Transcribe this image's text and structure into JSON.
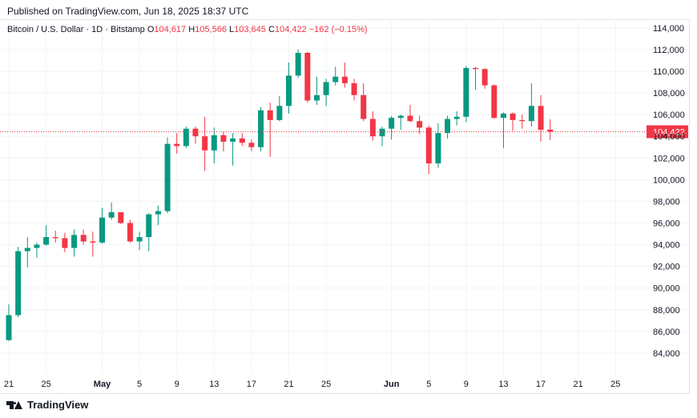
{
  "published": "Published on TradingView.com, Jun 18, 2025 18:37 UTC",
  "legend": {
    "symbol": "Bitcoin / U.S. Dollar · 1D · Bitstamp",
    "o_label": "O",
    "o": "104,617",
    "h_label": "H",
    "h": "105,566",
    "l_label": "L",
    "l": "103,645",
    "c_label": "C",
    "c": "104,422",
    "change": "−162 (−0.15%)"
  },
  "footer": {
    "brand": "TradingView"
  },
  "colors": {
    "up": "#089981",
    "down": "#f23645",
    "grid": "#f0f3fa",
    "text": "#131722"
  },
  "chart_data": {
    "type": "candlestick",
    "ylim": [
      82000,
      114800
    ],
    "y_ticks": [
      "84,000",
      "86,000",
      "88,000",
      "90,000",
      "92,000",
      "94,000",
      "96,000",
      "98,000",
      "100,000",
      "102,000",
      "104,000",
      "106,000",
      "108,000",
      "110,000",
      "112,000",
      "114,000"
    ],
    "x_ticks": [
      "21",
      "25",
      "May",
      "5",
      "9",
      "13",
      "17",
      "21",
      "25",
      "Jun",
      "5",
      "9",
      "13",
      "17",
      "21",
      "25"
    ],
    "last_price_label": "104,422",
    "last_price": 104422,
    "candles": [
      {
        "date": "2025-04-21",
        "o": 85200,
        "h": 88500,
        "l": 85100,
        "c": 87500
      },
      {
        "date": "2025-04-22",
        "o": 87500,
        "h": 93800,
        "l": 87300,
        "c": 93400
      },
      {
        "date": "2025-04-23",
        "o": 93400,
        "h": 94700,
        "l": 91900,
        "c": 93700
      },
      {
        "date": "2025-04-24",
        "o": 93700,
        "h": 94200,
        "l": 92800,
        "c": 94000
      },
      {
        "date": "2025-04-25",
        "o": 94000,
        "h": 95800,
        "l": 93900,
        "c": 94700
      },
      {
        "date": "2025-04-26",
        "o": 94700,
        "h": 95300,
        "l": 94200,
        "c": 94600
      },
      {
        "date": "2025-04-27",
        "o": 94600,
        "h": 95100,
        "l": 93300,
        "c": 93700
      },
      {
        "date": "2025-04-28",
        "o": 93700,
        "h": 95400,
        "l": 92900,
        "c": 94900
      },
      {
        "date": "2025-04-29",
        "o": 94900,
        "h": 95400,
        "l": 94000,
        "c": 94300
      },
      {
        "date": "2025-04-30",
        "o": 94300,
        "h": 95200,
        "l": 92900,
        "c": 94200
      },
      {
        "date": "2025-05-01",
        "o": 94200,
        "h": 97400,
        "l": 94100,
        "c": 96500
      },
      {
        "date": "2025-05-02",
        "o": 96500,
        "h": 97900,
        "l": 96300,
        "c": 97000
      },
      {
        "date": "2025-05-03",
        "o": 97000,
        "h": 97000,
        "l": 95900,
        "c": 96000
      },
      {
        "date": "2025-05-04",
        "o": 96000,
        "h": 96300,
        "l": 94200,
        "c": 94300
      },
      {
        "date": "2025-05-05",
        "o": 94300,
        "h": 95200,
        "l": 93500,
        "c": 94700
      },
      {
        "date": "2025-05-06",
        "o": 94700,
        "h": 96900,
        "l": 93400,
        "c": 96800
      },
      {
        "date": "2025-05-07",
        "o": 96800,
        "h": 97600,
        "l": 95800,
        "c": 97100
      },
      {
        "date": "2025-05-08",
        "o": 97100,
        "h": 103900,
        "l": 96900,
        "c": 103300
      },
      {
        "date": "2025-05-09",
        "o": 103300,
        "h": 104300,
        "l": 102400,
        "c": 103100
      },
      {
        "date": "2025-05-10",
        "o": 103100,
        "h": 104900,
        "l": 102900,
        "c": 104700
      },
      {
        "date": "2025-05-11",
        "o": 104700,
        "h": 104900,
        "l": 103300,
        "c": 104000
      },
      {
        "date": "2025-05-12",
        "o": 104000,
        "h": 105800,
        "l": 100800,
        "c": 102700
      },
      {
        "date": "2025-05-13",
        "o": 102700,
        "h": 104800,
        "l": 101500,
        "c": 104100
      },
      {
        "date": "2025-05-14",
        "o": 104100,
        "h": 104400,
        "l": 102600,
        "c": 103500
      },
      {
        "date": "2025-05-15",
        "o": 103500,
        "h": 104300,
        "l": 101300,
        "c": 103800
      },
      {
        "date": "2025-05-16",
        "o": 103800,
        "h": 104300,
        "l": 103100,
        "c": 103400
      },
      {
        "date": "2025-05-17",
        "o": 103400,
        "h": 103700,
        "l": 102600,
        "c": 103000
      },
      {
        "date": "2025-05-18",
        "o": 103000,
        "h": 106700,
        "l": 102600,
        "c": 106400
      },
      {
        "date": "2025-05-19",
        "o": 106400,
        "h": 107100,
        "l": 102100,
        "c": 105500
      },
      {
        "date": "2025-05-20",
        "o": 105500,
        "h": 107700,
        "l": 105400,
        "c": 106800
      },
      {
        "date": "2025-05-21",
        "o": 106800,
        "h": 110800,
        "l": 106100,
        "c": 109600
      },
      {
        "date": "2025-05-22",
        "o": 109600,
        "h": 112000,
        "l": 109400,
        "c": 111700
      },
      {
        "date": "2025-05-23",
        "o": 111700,
        "h": 111800,
        "l": 107100,
        "c": 107300
      },
      {
        "date": "2025-05-24",
        "o": 107300,
        "h": 109500,
        "l": 106900,
        "c": 107800
      },
      {
        "date": "2025-05-25",
        "o": 107800,
        "h": 109300,
        "l": 106800,
        "c": 109000
      },
      {
        "date": "2025-05-26",
        "o": 109000,
        "h": 110400,
        "l": 108700,
        "c": 109500
      },
      {
        "date": "2025-05-27",
        "o": 109500,
        "h": 110800,
        "l": 108500,
        "c": 108900
      },
      {
        "date": "2025-05-28",
        "o": 108900,
        "h": 109300,
        "l": 107300,
        "c": 107800
      },
      {
        "date": "2025-05-29",
        "o": 107800,
        "h": 108900,
        "l": 105400,
        "c": 105600
      },
      {
        "date": "2025-05-30",
        "o": 105600,
        "h": 106300,
        "l": 103600,
        "c": 104000
      },
      {
        "date": "2025-05-31",
        "o": 104000,
        "h": 104900,
        "l": 103100,
        "c": 104700
      },
      {
        "date": "2025-06-01",
        "o": 104700,
        "h": 105900,
        "l": 103700,
        "c": 105700
      },
      {
        "date": "2025-06-02",
        "o": 105700,
        "h": 106000,
        "l": 104600,
        "c": 105900
      },
      {
        "date": "2025-06-03",
        "o": 105900,
        "h": 106900,
        "l": 105300,
        "c": 105400
      },
      {
        "date": "2025-06-04",
        "o": 105400,
        "h": 105900,
        "l": 104200,
        "c": 104800
      },
      {
        "date": "2025-06-05",
        "o": 104800,
        "h": 105000,
        "l": 100500,
        "c": 101500
      },
      {
        "date": "2025-06-06",
        "o": 101500,
        "h": 105200,
        "l": 101100,
        "c": 104300
      },
      {
        "date": "2025-06-07",
        "o": 104300,
        "h": 105900,
        "l": 103800,
        "c": 105600
      },
      {
        "date": "2025-06-08",
        "o": 105600,
        "h": 106300,
        "l": 105000,
        "c": 105800
      },
      {
        "date": "2025-06-09",
        "o": 105800,
        "h": 110500,
        "l": 105300,
        "c": 110300
      },
      {
        "date": "2025-06-10",
        "o": 110300,
        "h": 110400,
        "l": 108300,
        "c": 110200
      },
      {
        "date": "2025-06-11",
        "o": 110200,
        "h": 110300,
        "l": 108400,
        "c": 108700
      },
      {
        "date": "2025-06-12",
        "o": 108700,
        "h": 108800,
        "l": 105600,
        "c": 105700
      },
      {
        "date": "2025-06-13",
        "o": 105700,
        "h": 106200,
        "l": 102900,
        "c": 106100
      },
      {
        "date": "2025-06-14",
        "o": 106100,
        "h": 106200,
        "l": 104500,
        "c": 105500
      },
      {
        "date": "2025-06-15",
        "o": 105500,
        "h": 106000,
        "l": 104700,
        "c": 105400
      },
      {
        "date": "2025-06-16",
        "o": 105400,
        "h": 108900,
        "l": 104900,
        "c": 106800
      },
      {
        "date": "2025-06-17",
        "o": 106800,
        "h": 107800,
        "l": 103500,
        "c": 104600
      },
      {
        "date": "2025-06-18",
        "o": 104617,
        "h": 105566,
        "l": 103645,
        "c": 104422
      }
    ]
  }
}
